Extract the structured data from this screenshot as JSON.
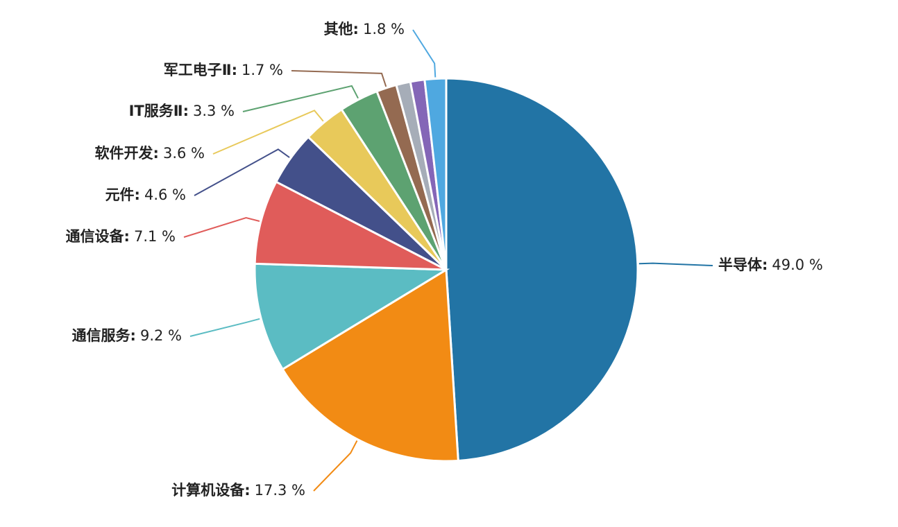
{
  "chart_data": {
    "type": "pie",
    "categories": [
      "半导体:",
      "计算机设备:",
      "通信服务:",
      "通信设备:",
      "元件:",
      "软件开发:",
      "IT服务Ⅱ:",
      "军工电子Ⅱ:",
      null,
      null,
      "其他:"
    ],
    "values": [
      49.0,
      17.3,
      9.2,
      7.1,
      4.6,
      3.6,
      3.3,
      1.7,
      1.2,
      1.2,
      1.8
    ],
    "value_labels": [
      "49.0 %",
      "17.3 %",
      "9.2 %",
      "7.1 %",
      "4.6 %",
      "3.6 %",
      "3.3 %",
      "1.7 %",
      null,
      null,
      "1.8 %"
    ],
    "colors": [
      "#2274a5",
      "#f28b14",
      "#5bbcc3",
      "#e05c5a",
      "#43508a",
      "#e8c95a",
      "#5da271",
      "#946a51",
      "#a6adb8",
      "#8466b7",
      "#4fa8e0"
    ]
  }
}
